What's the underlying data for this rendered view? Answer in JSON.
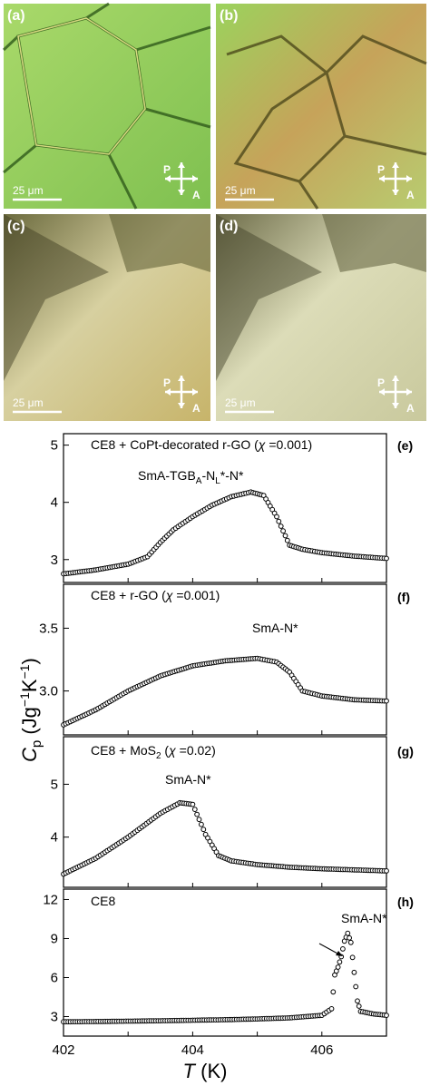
{
  "micrographs": [
    {
      "id": "a",
      "label": "(a)",
      "scale": "25 μm",
      "polarizer": "P",
      "analyzer": "A"
    },
    {
      "id": "b",
      "label": "(b)",
      "scale": "25 μm",
      "polarizer": "P",
      "analyzer": "A"
    },
    {
      "id": "c",
      "label": "(c)",
      "scale": "25 μm",
      "polarizer": "P",
      "analyzer": "A"
    },
    {
      "id": "d",
      "label": "(d)",
      "scale": "25 μm",
      "polarizer": "P",
      "analyzer": "A"
    }
  ],
  "colors": {
    "a_bg": "#8fcf5a",
    "b_bg": "#b7c86a",
    "c_bg": "#c9bf7e",
    "d_bg": "#c7c79a",
    "marker": "#000000"
  },
  "y_axis_label": {
    "main": "C",
    "sub": "p",
    "units": " (Jg",
    "exp1": "−1",
    "mid": "K",
    "exp2": "−1",
    "close": ")"
  },
  "x_axis_label": {
    "main": "T",
    "units": " (K)"
  },
  "chart_data": [
    {
      "type": "scatter",
      "panel_label": "(e)",
      "title_parts": {
        "main": "CE8 + CoPt-decorated r-GO  (",
        "chi": "χ",
        "rest": " =0.001)"
      },
      "annotation": {
        "p1": "SmA-TGB",
        "s1": "A",
        "p2": "-N",
        "s2": "L",
        "p3": "*-N*"
      },
      "ylim": [
        2.6,
        5.2
      ],
      "yticks": [
        3,
        4,
        5
      ],
      "xlim": [
        402,
        407
      ],
      "x": [
        402.0,
        402.5,
        403.0,
        403.3,
        403.5,
        403.7,
        404.0,
        404.3,
        404.6,
        404.9,
        405.1,
        405.3,
        405.5,
        405.7,
        406.0,
        406.5,
        407.0
      ],
      "y": [
        2.75,
        2.82,
        2.92,
        3.05,
        3.3,
        3.52,
        3.75,
        3.95,
        4.1,
        4.18,
        4.12,
        3.75,
        3.25,
        3.18,
        3.12,
        3.06,
        3.02
      ]
    },
    {
      "type": "scatter",
      "panel_label": "(f)",
      "title_parts": {
        "main": "CE8 + r-GO  (",
        "chi": "χ",
        "rest": " =0.001)"
      },
      "annotation": {
        "text": "SmA-N*"
      },
      "ylim": [
        2.65,
        3.85
      ],
      "yticks": [
        3.0,
        3.5
      ],
      "yticklabels": [
        "3.0",
        "3.5"
      ],
      "xlim": [
        402,
        407
      ],
      "x": [
        402.0,
        402.5,
        403.0,
        403.5,
        404.0,
        404.5,
        405.0,
        405.3,
        405.5,
        405.7,
        406.0,
        406.5,
        407.0
      ],
      "y": [
        2.73,
        2.85,
        3.0,
        3.12,
        3.2,
        3.24,
        3.26,
        3.23,
        3.15,
        3.0,
        2.96,
        2.93,
        2.92
      ]
    },
    {
      "type": "scatter",
      "panel_label": "(g)",
      "title_parts": {
        "main": "CE8 + MoS",
        "sub": "2",
        "rest_pre": "  (",
        "chi": "χ",
        "rest": " =0.02)"
      },
      "annotation": {
        "text": "SmA-N*"
      },
      "ylim": [
        3.05,
        5.9
      ],
      "yticks": [
        4,
        5
      ],
      "xlim": [
        402,
        407
      ],
      "x": [
        402.0,
        402.5,
        403.0,
        403.5,
        403.8,
        404.0,
        404.2,
        404.4,
        404.6,
        405.0,
        405.5,
        406.0,
        406.5,
        407.0
      ],
      "y": [
        3.3,
        3.6,
        4.0,
        4.45,
        4.65,
        4.62,
        4.05,
        3.65,
        3.55,
        3.48,
        3.43,
        3.4,
        3.38,
        3.36
      ]
    },
    {
      "type": "scatter",
      "panel_label": "(h)",
      "title_parts": {
        "main": "CE8"
      },
      "annotation": {
        "text": "SmA-N*"
      },
      "ylim": [
        1.5,
        12.8
      ],
      "yticks": [
        3,
        6,
        9,
        12
      ],
      "xticks": [
        402,
        404,
        406
      ],
      "xlim": [
        402,
        407
      ],
      "x": [
        402.0,
        402.5,
        403.0,
        403.5,
        404.0,
        404.5,
        405.0,
        405.5,
        406.0,
        406.15,
        406.2,
        406.25,
        406.3,
        406.35,
        406.4,
        406.45,
        406.5,
        406.55,
        406.6,
        406.8,
        407.0
      ],
      "y": [
        2.6,
        2.62,
        2.65,
        2.68,
        2.72,
        2.76,
        2.82,
        2.9,
        3.1,
        3.6,
        6.2,
        6.8,
        7.6,
        8.8,
        9.4,
        8.7,
        6.4,
        4.2,
        3.4,
        3.2,
        3.1
      ]
    }
  ]
}
